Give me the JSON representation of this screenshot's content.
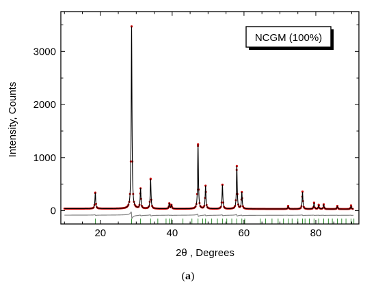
{
  "caption": {
    "open": "(",
    "letter": "a",
    "close": ")"
  },
  "chart_data": {
    "type": "line",
    "legend_box": "NCGM (100%)",
    "xlabel": "2θ , Degrees",
    "ylabel": "Intensity, Counts",
    "xlim": [
      9,
      92
    ],
    "ylim": [
      -250,
      3750
    ],
    "xticks": [
      20,
      40,
      60,
      80
    ],
    "yticks": [
      0,
      1000,
      2000,
      3000
    ],
    "colors": {
      "observed": "#cc0000",
      "calculated": "#000000",
      "difference": "#808080",
      "bragg": "#2e8b2e"
    },
    "baseline": 40,
    "difference_offset": -85,
    "bragg_row": -200,
    "peaks": [
      {
        "x": 18.6,
        "y": 340
      },
      {
        "x": 28.7,
        "y": 3470
      },
      {
        "x": 31.2,
        "y": 420
      },
      {
        "x": 34.0,
        "y": 600
      },
      {
        "x": 39.2,
        "y": 140
      },
      {
        "x": 39.8,
        "y": 110
      },
      {
        "x": 47.2,
        "y": 1250
      },
      {
        "x": 49.3,
        "y": 470
      },
      {
        "x": 54.0,
        "y": 490
      },
      {
        "x": 58.0,
        "y": 840
      },
      {
        "x": 59.4,
        "y": 350
      },
      {
        "x": 72.3,
        "y": 90
      },
      {
        "x": 76.3,
        "y": 360
      },
      {
        "x": 79.5,
        "y": 150
      },
      {
        "x": 80.8,
        "y": 110
      },
      {
        "x": 82.2,
        "y": 120
      },
      {
        "x": 86.0,
        "y": 90
      },
      {
        "x": 89.8,
        "y": 100
      }
    ],
    "bragg_positions": [
      18.6,
      28.7,
      31.2,
      34.0,
      36.0,
      38.3,
      39.2,
      39.8,
      43.0,
      45.5,
      47.2,
      48.5,
      49.3,
      51.0,
      52.6,
      54.0,
      55.2,
      56.6,
      58.0,
      59.4,
      60.2,
      64.5,
      66.0,
      67.8,
      69.5,
      71.0,
      72.3,
      73.4,
      75.0,
      76.3,
      77.0,
      78.2,
      79.5,
      80.8,
      82.2,
      83.5,
      84.6,
      86.0,
      87.2,
      88.4,
      89.8,
      90.6
    ]
  }
}
